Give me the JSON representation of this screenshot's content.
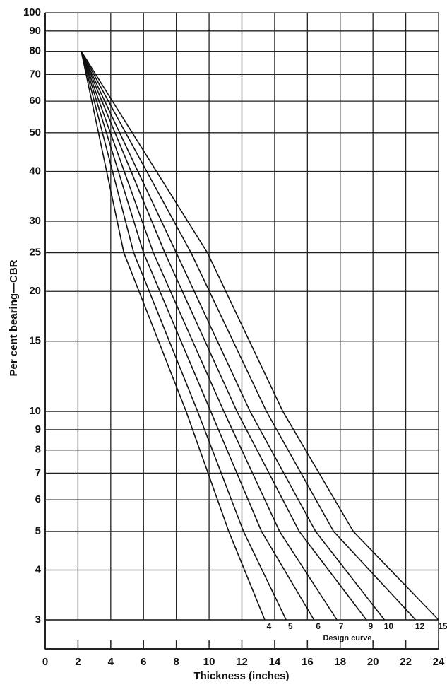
{
  "chart_data": {
    "type": "line",
    "x_label": "Thickness (inches)",
    "y_label": "Per cent bearing—CBR",
    "curve_label": "Design curve",
    "log_y": true,
    "grid": true,
    "color": "#111111",
    "xlim": [
      0,
      24
    ],
    "xticks": [
      0,
      2,
      4,
      6,
      8,
      10,
      12,
      14,
      16,
      18,
      20,
      22,
      24
    ],
    "ylim": [
      3,
      100
    ],
    "yticks": [
      3,
      4,
      5,
      6,
      7,
      8,
      9,
      10,
      15,
      20,
      25,
      30,
      40,
      50,
      60,
      70,
      80,
      90,
      100
    ],
    "series": [
      {
        "name": "4",
        "x": [
          2.2,
          4.8,
          8.6,
          11.2,
          13.4
        ],
        "values": [
          80,
          25,
          10,
          5,
          3
        ]
      },
      {
        "name": "5",
        "x": [
          2.2,
          5.4,
          9.3,
          12.1,
          14.7
        ],
        "values": [
          80,
          25,
          10,
          5,
          3
        ]
      },
      {
        "name": "6",
        "x": [
          2.2,
          6.0,
          10.1,
          13.2,
          16.4
        ],
        "values": [
          80,
          25,
          10,
          5,
          3
        ]
      },
      {
        "name": "7",
        "x": [
          2.2,
          6.6,
          10.9,
          14.3,
          17.8
        ],
        "values": [
          80,
          25,
          10,
          5,
          3
        ]
      },
      {
        "name": "9",
        "x": [
          2.2,
          7.3,
          11.7,
          15.5,
          19.6
        ],
        "values": [
          80,
          25,
          10,
          5,
          3
        ]
      },
      {
        "name": "10",
        "x": [
          2.2,
          8.0,
          12.5,
          16.5,
          20.7
        ],
        "values": [
          80,
          25,
          10,
          5,
          3
        ]
      },
      {
        "name": "12",
        "x": [
          2.2,
          8.9,
          13.5,
          17.6,
          22.6
        ],
        "values": [
          80,
          25,
          10,
          5,
          3
        ]
      },
      {
        "name": "15",
        "x": [
          2.2,
          9.9,
          14.5,
          18.8,
          24
        ],
        "values": [
          80,
          25,
          10,
          5,
          3
        ]
      }
    ]
  }
}
